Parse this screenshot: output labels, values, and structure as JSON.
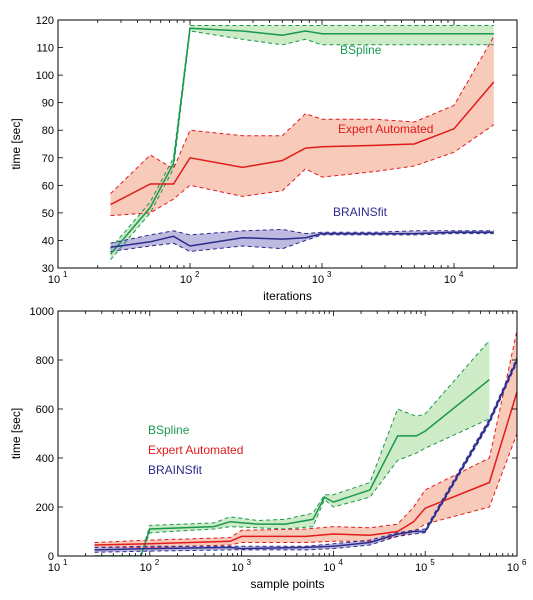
{
  "colors": {
    "bspline": "#1a9850",
    "expert": "#e31a1c",
    "brains": "#2c2c8c",
    "expert_fill": "#f6c4b3",
    "bspline_fill": "#c7e9c0",
    "brains_fill": "#b7b3dd"
  },
  "chart_data": [
    {
      "type": "line",
      "xlabel": "iterations",
      "ylabel": "time [sec]",
      "xscale": "log",
      "xlim": [
        10,
        30000
      ],
      "ylim": [
        30,
        120
      ],
      "xticks": [
        "10",
        "10",
        "10",
        "10"
      ],
      "xtick_exps": [
        "1",
        "2",
        "3",
        "4"
      ],
      "xtick_values": [
        10,
        100,
        1000,
        10000
      ],
      "yticks": [
        "30",
        "40",
        "50",
        "60",
        "70",
        "80",
        "90",
        "100",
        "110",
        "120"
      ],
      "ytick_values": [
        30,
        40,
        50,
        60,
        70,
        80,
        90,
        100,
        110,
        120
      ],
      "series": [
        {
          "name": "BSpline",
          "key": "bspline",
          "x": [
            25,
            50,
            75,
            100,
            250,
            500,
            750,
            1000,
            2500,
            5000,
            10000,
            20000
          ],
          "mean": [
            35,
            52,
            68,
            117,
            116,
            114.5,
            116,
            115,
            115,
            115,
            115,
            115
          ],
          "upper": [
            37,
            54,
            70,
            118,
            118,
            118,
            118,
            118,
            118,
            118,
            118,
            118
          ],
          "lower": [
            33,
            50,
            66,
            116,
            113,
            111,
            113,
            111,
            111,
            111,
            111,
            111
          ]
        },
        {
          "name": "Expert Automated",
          "key": "expert",
          "x": [
            25,
            50,
            75,
            100,
            250,
            500,
            750,
            1000,
            2500,
            5000,
            10000,
            20000
          ],
          "mean": [
            53,
            60.5,
            60.5,
            70,
            66.5,
            69,
            73.5,
            74,
            74.5,
            75,
            80.5,
            97.5
          ],
          "upper": [
            57,
            71,
            66,
            80,
            78,
            78,
            86,
            84,
            84,
            83,
            89,
            114
          ],
          "lower": [
            49,
            50,
            55,
            60,
            56,
            58,
            66,
            63,
            65,
            67,
            72,
            82
          ]
        },
        {
          "name": "BRAINSfit",
          "key": "brains",
          "x": [
            25,
            50,
            75,
            100,
            250,
            500,
            750,
            1000,
            2500,
            5000,
            10000,
            20000
          ],
          "mean": [
            37.5,
            39.5,
            41.5,
            38,
            41,
            40.5,
            41,
            42.5,
            42.5,
            42.5,
            43,
            43
          ],
          "upper": [
            39,
            42,
            43.5,
            42,
            43.5,
            44,
            42.5,
            43,
            43,
            43.5,
            43.5,
            43.5
          ],
          "lower": [
            36,
            38,
            39,
            36,
            38,
            37,
            40,
            42,
            42,
            42,
            42.5,
            42.5
          ]
        }
      ],
      "annotations": [
        {
          "text": "BSpline",
          "series": "bspline",
          "x": 3000,
          "y": 105
        },
        {
          "text": "Expert Automated",
          "series": "expert",
          "x": 3000,
          "y": 78
        },
        {
          "text": "BRAINSfit",
          "series": "brains",
          "x": 3000,
          "y": 48
        }
      ]
    },
    {
      "type": "line",
      "xlabel": "sample points",
      "ylabel": "time [sec]",
      "xscale": "log",
      "xlim": [
        10,
        1000000
      ],
      "ylim": [
        0,
        1000
      ],
      "xticks": [
        "10",
        "10",
        "10",
        "10",
        "10",
        "10"
      ],
      "xtick_exps": [
        "1",
        "2",
        "3",
        "4",
        "5",
        "6"
      ],
      "xtick_values": [
        10,
        100,
        1000,
        10000,
        100000,
        1000000
      ],
      "yticks": [
        "0",
        "200",
        "400",
        "600",
        "800",
        "1000"
      ],
      "ytick_values": [
        0,
        200,
        400,
        600,
        800,
        1000
      ],
      "legend_placement": "left",
      "series": [
        {
          "name": "BSpline",
          "key": "bspline",
          "x": [
            25,
            80,
            100,
            500,
            750,
            1500,
            3000,
            6000,
            8000,
            10000,
            25000,
            50000,
            80000,
            100000,
            500000
          ],
          "mean": [
            0,
            0,
            110,
            120,
            140,
            130,
            130,
            150,
            240,
            220,
            270,
            490,
            490,
            510,
            720
          ],
          "upper": [
            0,
            0,
            125,
            135,
            160,
            145,
            150,
            175,
            250,
            250,
            300,
            600,
            570,
            580,
            880
          ],
          "lower": [
            0,
            0,
            95,
            110,
            120,
            115,
            110,
            120,
            230,
            200,
            240,
            390,
            420,
            440,
            560
          ]
        },
        {
          "name": "Expert Automated",
          "key": "expert",
          "x": [
            25,
            100,
            750,
            1000,
            5000,
            10000,
            25000,
            50000,
            75000,
            100000,
            500000,
            1000000
          ],
          "mean": [
            45,
            50,
            60,
            80,
            80,
            90,
            85,
            100,
            140,
            195,
            300,
            670
          ],
          "upper": [
            55,
            65,
            75,
            105,
            110,
            120,
            115,
            130,
            200,
            270,
            400,
            920
          ],
          "lower": [
            35,
            35,
            45,
            55,
            55,
            60,
            60,
            80,
            100,
            130,
            200,
            500
          ]
        },
        {
          "name": "BRAINSfit",
          "key": "brains",
          "x": [
            25,
            100,
            750,
            1000,
            5000,
            10000,
            25000,
            50000,
            75000,
            100000,
            500000,
            1000000
          ],
          "mean": [
            25,
            30,
            35,
            30,
            35,
            40,
            55,
            90,
            100,
            100,
            550,
            800
          ],
          "upper": [
            35,
            40,
            40,
            40,
            40,
            50,
            65,
            95,
            105,
            110,
            560,
            810
          ],
          "lower": [
            15,
            20,
            25,
            25,
            25,
            30,
            45,
            80,
            90,
            95,
            540,
            790
          ]
        }
      ],
      "annotations": [
        {
          "text": "BSpline",
          "series": "bspline"
        },
        {
          "text": "Expert Automated",
          "series": "expert"
        },
        {
          "text": "BRAINSfit",
          "series": "brains"
        }
      ]
    }
  ]
}
